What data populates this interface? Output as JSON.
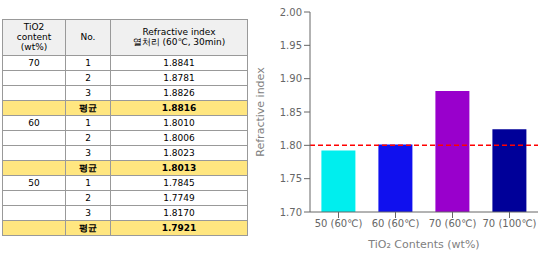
{
  "chart_data": [
    {
      "type": "table",
      "columns": [
        "TiO2\ncontent\n(wt%)",
        "No.",
        "Refractive index\n열처리 (60℃, 30min)"
      ],
      "rows": [
        [
          "70",
          "1",
          "1.8841"
        ],
        [
          "",
          "2",
          "1.8781"
        ],
        [
          "",
          "3",
          "1.8826"
        ],
        [
          "",
          "평균",
          "1.8816"
        ],
        [
          "60",
          "1",
          "1.8010"
        ],
        [
          "",
          "2",
          "1.8006"
        ],
        [
          "",
          "3",
          "1.8023"
        ],
        [
          "",
          "평균",
          "1.8013"
        ],
        [
          "50",
          "1",
          "1.7845"
        ],
        [
          "",
          "2",
          "1.7749"
        ],
        [
          "",
          "3",
          "1.8170"
        ],
        [
          "",
          "평균",
          "1.7921"
        ]
      ],
      "highlight": {
        "label": "평균",
        "color": "#FFE680"
      }
    },
    {
      "type": "bar",
      "categories": [
        "50 (60℃)",
        "60 (60℃)",
        "70 (60℃)",
        "70 (100℃)"
      ],
      "values": [
        1.7921,
        1.8013,
        1.8816,
        1.824
      ],
      "colors": [
        "#00EEEE",
        "#1010EE",
        "#9900CC",
        "#000099"
      ],
      "xlabel": "TiO₂ Contents (wt%)",
      "ylabel": "Refractive index",
      "ylim": [
        1.7,
        2.0
      ],
      "yticks": [
        {
          "value": 1.7,
          "label": "1.70"
        },
        1.75,
        {
          "value": 1.8,
          "label": "1.80"
        },
        1.85,
        {
          "value": 1.9,
          "label": "1.90"
        },
        1.95,
        {
          "value": 2.0,
          "label": "2.00"
        }
      ],
      "reference_line": {
        "y": 1.8,
        "color": "#FF0000",
        "line_style": "dashed"
      },
      "grid": false
    }
  ]
}
